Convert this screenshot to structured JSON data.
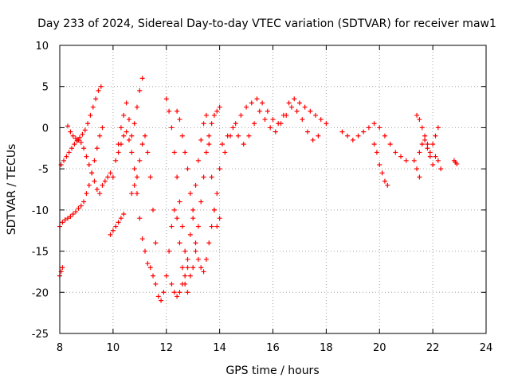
{
  "chart_data": {
    "type": "scatter",
    "title": "Day 233 of 2024, Sidereal Day-to-day VTEC variation (SDTVAR) for receiver maw1",
    "xlabel": "GPS time / hours",
    "ylabel": "SDTVAR / TECUs",
    "xlim": [
      8,
      24
    ],
    "ylim": [
      -25,
      10
    ],
    "xticks": [
      8,
      10,
      12,
      14,
      16,
      18,
      20,
      22,
      24
    ],
    "yticks": [
      10,
      5,
      0,
      -5,
      -10,
      -15,
      -20,
      -25
    ],
    "grid": true,
    "marker": "plus",
    "color": "#ff0000",
    "series": [
      {
        "name": "trace-1",
        "x": [
          8.0,
          8.1,
          8.2,
          8.3,
          8.4,
          8.5,
          8.6,
          8.7,
          8.8,
          8.9,
          9.0,
          9.1,
          9.2,
          9.3,
          9.4,
          9.5,
          9.6
        ],
        "y": [
          -12,
          -11.5,
          -11.2,
          -11,
          -10.8,
          -10.5,
          -10.2,
          -9.8,
          -9.5,
          -9,
          -8,
          -7,
          -5.5,
          -4,
          -2.5,
          -1,
          0
        ]
      },
      {
        "name": "trace-2",
        "x": [
          8.05,
          8.15,
          8.25,
          8.35,
          8.45,
          8.55,
          8.65,
          8.75,
          8.85,
          8.95,
          9.05,
          9.15,
          9.25,
          9.35,
          9.45,
          9.55
        ],
        "y": [
          -4.5,
          -4,
          -3.5,
          -3,
          -2.5,
          -2,
          -1.6,
          -1.2,
          -0.8,
          -0.3,
          0.5,
          1.5,
          2.5,
          3.5,
          4.5,
          5
        ]
      },
      {
        "name": "trace-3",
        "x": [
          8.3,
          8.4,
          8.5,
          8.6,
          8.7,
          8.8,
          8.9,
          9.0,
          9.1,
          9.2,
          9.3,
          9.4,
          9.5,
          9.6,
          9.7,
          9.8,
          9.9
        ],
        "y": [
          0.2,
          -0.5,
          -1,
          -1.3,
          -1.5,
          -1.8,
          -2.5,
          -3.5,
          -4.5,
          -5.5,
          -6.5,
          -7.5,
          -8,
          -7,
          -6.5,
          -6,
          -5.5
        ]
      },
      {
        "name": "trace-4",
        "x": [
          8.0,
          8.05,
          8.1
        ],
        "y": [
          -18,
          -17.5,
          -17
        ]
      },
      {
        "name": "trace-5",
        "x": [
          9.9,
          10.0,
          10.1,
          10.2,
          10.3,
          10.4
        ],
        "y": [
          -13,
          -12.5,
          -12,
          -11.5,
          -11,
          -10.5
        ]
      },
      {
        "name": "trace-6",
        "x": [
          10.0,
          10.1,
          10.2,
          10.3,
          10.4,
          10.5,
          10.6,
          10.7,
          10.8,
          10.9,
          11.0,
          11.1
        ],
        "y": [
          -6,
          -4,
          -2,
          0,
          1.5,
          3,
          1,
          -1,
          0.5,
          2.5,
          4.5,
          6
        ]
      },
      {
        "name": "trace-7",
        "x": [
          10.2,
          10.3,
          10.4,
          10.5,
          10.6,
          10.7,
          10.8,
          10.9,
          11.0,
          11.1,
          11.2,
          11.3,
          11.4,
          11.5,
          11.6,
          11.7,
          11.8
        ],
        "y": [
          -3,
          -2,
          -1,
          -0.5,
          -1.5,
          -3,
          -5,
          -8,
          -11,
          -13.5,
          -15,
          -16.5,
          -17,
          -18,
          -19,
          -20.5,
          -21
        ]
      },
      {
        "name": "trace-8",
        "x": [
          10.7,
          10.8,
          10.9,
          11.0,
          11.1,
          11.2,
          11.3,
          11.4,
          11.5,
          11.6
        ],
        "y": [
          -8,
          -7,
          -6,
          -4,
          -2,
          -1,
          -3,
          -6,
          -10,
          -14
        ]
      },
      {
        "name": "trace-9",
        "x": [
          11.9,
          12.0,
          12.1,
          12.2,
          12.3,
          12.4,
          12.5,
          12.6,
          12.7,
          12.8
        ],
        "y": [
          -20,
          -18,
          -15,
          -12,
          -10,
          -11,
          -14,
          -17,
          -19,
          -20
        ]
      },
      {
        "name": "trace-10",
        "x": [
          12.0,
          12.1,
          12.2,
          12.3,
          12.4,
          12.5,
          12.6,
          12.7,
          12.8,
          12.9,
          13.0,
          13.1,
          13.2,
          13.3,
          13.4,
          13.5,
          13.6,
          13.7,
          13.8,
          13.9,
          14.0
        ],
        "y": [
          3.5,
          2,
          0,
          -3,
          -6,
          -9,
          -12,
          -15,
          -17,
          -18,
          -17,
          -15,
          -12,
          -9,
          -6,
          -3,
          -1,
          0.5,
          1.5,
          2,
          2.5
        ]
      },
      {
        "name": "trace-11",
        "x": [
          12.2,
          12.3,
          12.4,
          12.5,
          12.6,
          12.7,
          12.8,
          12.9,
          13.0,
          13.1,
          13.2,
          13.3,
          13.4,
          13.5,
          13.6,
          13.7,
          13.8,
          13.9,
          14.0
        ],
        "y": [
          -19,
          -20,
          -20.5,
          -20,
          -19,
          -18,
          -16,
          -13,
          -10,
          -7,
          -4,
          -1.5,
          0.5,
          1.5,
          -2,
          -6,
          -10,
          -12,
          -11
        ]
      },
      {
        "name": "trace-12",
        "x": [
          12.4,
          12.5,
          12.6,
          12.7,
          12.8,
          12.9,
          13.0,
          13.1,
          13.2,
          13.3,
          13.4,
          13.5,
          13.6,
          13.7,
          13.8,
          13.9
        ],
        "y": [
          2,
          1,
          -1,
          -3,
          -5,
          -8,
          -11,
          -14,
          -16,
          -17,
          -17.5,
          -16,
          -14,
          -12,
          -10,
          -8
        ]
      },
      {
        "name": "trace-13",
        "x": [
          14.0,
          14.2,
          14.4,
          14.6,
          14.8,
          15.0,
          15.2,
          15.4,
          15.6,
          15.8,
          16.0,
          16.2,
          16.4,
          16.6,
          16.8,
          17.0,
          17.2,
          17.4,
          17.6,
          17.8,
          18.0
        ],
        "y": [
          -5,
          -3,
          -1,
          0.5,
          1.5,
          2.5,
          3,
          3.5,
          3,
          2,
          1,
          0.5,
          1.5,
          3,
          3.5,
          3,
          2.5,
          2,
          1.5,
          1,
          0.5
        ]
      },
      {
        "name": "trace-14",
        "x": [
          14.1,
          14.3,
          14.5,
          14.7,
          14.9,
          15.1,
          15.3,
          15.5,
          15.7,
          15.9,
          16.1,
          16.3,
          16.5,
          16.7,
          16.9,
          17.1,
          17.3,
          17.5,
          17.7
        ],
        "y": [
          -2,
          -1,
          0,
          -1,
          -2,
          -1,
          0.5,
          2,
          1,
          0,
          -0.5,
          0.5,
          1.5,
          2.5,
          2,
          1,
          -0.5,
          -1.5,
          -1
        ]
      },
      {
        "name": "trace-15",
        "x": [
          18.6,
          18.8,
          19.0,
          19.2,
          19.4,
          19.6,
          19.8,
          20.0,
          20.2,
          20.4,
          20.6,
          20.8,
          21.0
        ],
        "y": [
          -0.5,
          -1,
          -1.5,
          -1,
          -0.5,
          0,
          0.5,
          0,
          -1,
          -2,
          -3,
          -3.5,
          -4
        ]
      },
      {
        "name": "trace-16",
        "x": [
          19.8,
          19.9,
          20.0,
          20.1,
          20.2,
          20.3
        ],
        "y": [
          -2,
          -3,
          -4.5,
          -5.5,
          -6.5,
          -7
        ]
      },
      {
        "name": "trace-17",
        "x": [
          21.4,
          21.5,
          21.6,
          21.7,
          21.8,
          21.9,
          22.0,
          22.1,
          22.2
        ],
        "y": [
          1.5,
          1,
          0,
          -1,
          -2,
          -3,
          -2,
          -1,
          0
        ]
      },
      {
        "name": "trace-18",
        "x": [
          21.5,
          21.6,
          21.7,
          21.8,
          21.9,
          22.0,
          22.1,
          22.2,
          22.3
        ],
        "y": [
          -3,
          -2,
          -1.5,
          -2.5,
          -3.5,
          -4.5,
          -3.5,
          -4,
          -5
        ]
      },
      {
        "name": "trace-19",
        "x": [
          21.3,
          21.4,
          21.5
        ],
        "y": [
          -4,
          -5,
          -6
        ]
      },
      {
        "name": "trace-20",
        "x": [
          22.8,
          22.85,
          22.9
        ],
        "y": [
          -4,
          -4.2,
          -4.4
        ]
      }
    ]
  }
}
